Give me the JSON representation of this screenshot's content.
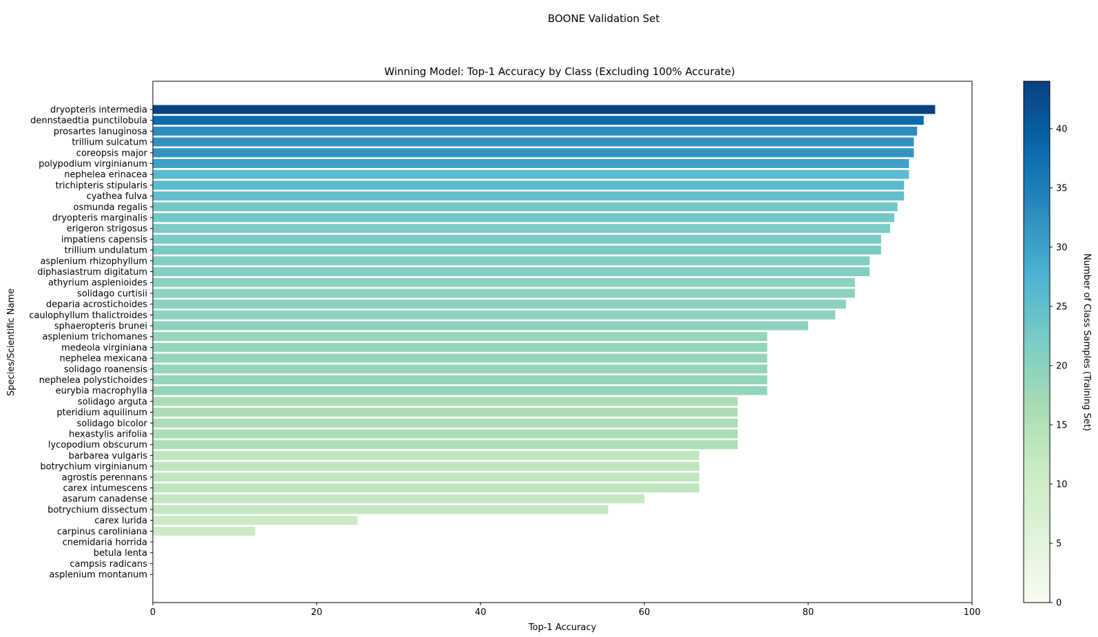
{
  "suptitle": "BOONE Validation Set",
  "chart_data": {
    "type": "bar",
    "orientation": "horizontal",
    "title": "Winning Model: Top-1 Accuracy by Class (Excluding 100% Accurate)",
    "xlabel": "Top-1 Accuracy",
    "ylabel": "Species/Scientific Name",
    "xlim": [
      0,
      100
    ],
    "xticks": [
      0,
      20,
      40,
      60,
      80,
      100
    ],
    "grid": false,
    "categories": [
      "dryopteris intermedia",
      "dennstaedtia punctilobula",
      "prosartes lanuginosa",
      "trillium sulcatum",
      "coreopsis major",
      "polypodium virginianum",
      "nephelea erinacea",
      "trichipteris stipularis",
      "cyathea fulva",
      "osmunda regalis",
      "dryopteris marginalis",
      "erigeron strigosus",
      "impatiens capensis",
      "trillium undulatum",
      "asplenium rhizophyllum",
      "diphasiastrum digitatum",
      "athyrium asplenioides",
      "solidago curtisii",
      "deparia acrostichoides",
      "caulophyllum thalictroides",
      "sphaeropteris brunei",
      "asplenium trichomanes",
      "medeola virginiana",
      "nephelea mexicana",
      "solidago roanensis",
      "nephelea polystichoides",
      "eurybia macrophylla",
      "solidago arguta",
      "pteridium aquilinum",
      "solidago bicolor",
      "hexastylis arifolia",
      "lycopodium obscurum",
      "barbarea vulgaris",
      "botrychium virginianum",
      "agrostis perennans",
      "carex intumescens",
      "asarum canadense",
      "botrychium dissectum",
      "carex lurida",
      "carpinus caroliniana",
      "cnemidaria horrida",
      "betula lenta",
      "campsis radicans",
      "asplenium montanum"
    ],
    "values": [
      95.5,
      94.1,
      93.3,
      92.9,
      92.9,
      92.3,
      92.3,
      91.7,
      91.7,
      90.9,
      90.5,
      90.0,
      88.9,
      88.9,
      87.5,
      87.5,
      85.7,
      85.7,
      84.6,
      83.3,
      80.0,
      75.0,
      75.0,
      75.0,
      75.0,
      75.0,
      75.0,
      71.4,
      71.4,
      71.4,
      71.4,
      71.4,
      66.7,
      66.7,
      66.7,
      66.7,
      60.0,
      55.6,
      25.0,
      12.5,
      0,
      0,
      0,
      0
    ],
    "class_samples": [
      44,
      38,
      33,
      32,
      32,
      30,
      26,
      26,
      25,
      23,
      23,
      22,
      22,
      22,
      21,
      21,
      20,
      20,
      20,
      20,
      20,
      19,
      19,
      19,
      19,
      19,
      19,
      16,
      16,
      16,
      16,
      16,
      13,
      13,
      13,
      13,
      12,
      12,
      11,
      11,
      10,
      10,
      10,
      10
    ],
    "colorbar": {
      "label": "Number of Class Samples (Training Set)",
      "colormap": "GnBu",
      "range": [
        0,
        44
      ],
      "ticks": [
        0,
        5,
        10,
        15,
        20,
        25,
        30,
        35,
        40
      ]
    }
  }
}
